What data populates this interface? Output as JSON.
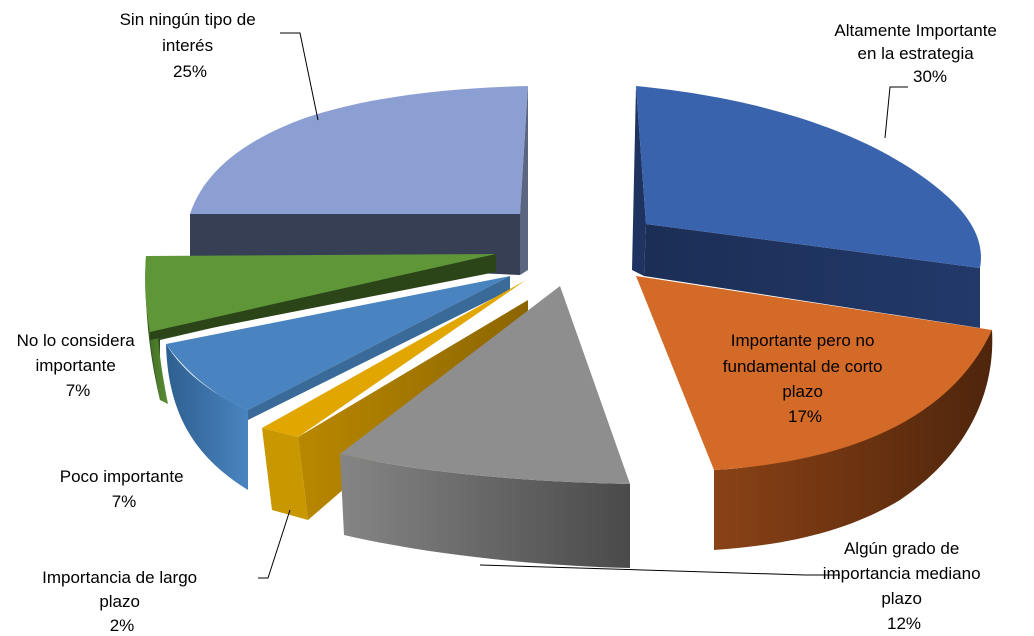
{
  "chart_data": {
    "type": "pie",
    "title": "",
    "slices": [
      {
        "line1": "Altamente Importante",
        "line2": "en la estrategia",
        "line3": "",
        "percent_label": "30%",
        "value": 30,
        "color": "#3A63AE"
      },
      {
        "line1": "Importante pero no",
        "line2": "fundamental de  corto",
        "line3": "plazo",
        "percent_label": "17%",
        "value": 17,
        "color": "#D36A27"
      },
      {
        "line1": "Algún grado de",
        "line2": "importancia mediano",
        "line3": "plazo",
        "percent_label": "12%",
        "value": 12,
        "color": "#8E8E8E"
      },
      {
        "line1": "Importancia de largo",
        "line2": "plazo",
        "line3": "",
        "percent_label": "2%",
        "value": 2,
        "color": "#E1A600"
      },
      {
        "line1": "Poco importante",
        "line2": "",
        "line3": "",
        "percent_label": "7%",
        "value": 7,
        "color": "#4A84C0"
      },
      {
        "line1": "No lo considera",
        "line2": "importante",
        "line3": "",
        "percent_label": "7%",
        "value": 7,
        "color": "#5E9638"
      },
      {
        "line1": "Sin ningún tipo de",
        "line2": "interés",
        "line3": "",
        "percent_label": "25%",
        "value": 25,
        "color": "#8C9FD2"
      }
    ]
  }
}
